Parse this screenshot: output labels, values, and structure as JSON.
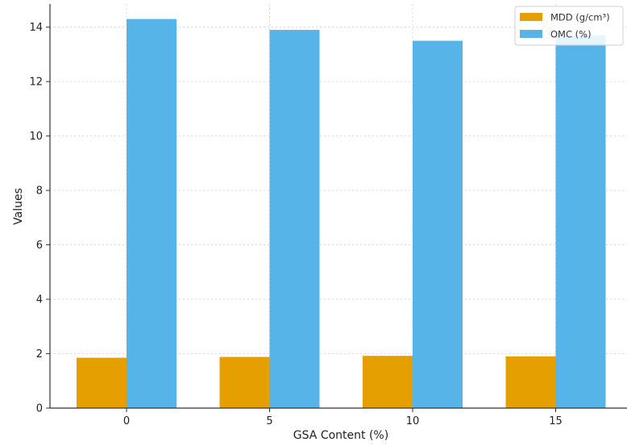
{
  "chart_data": {
    "type": "bar",
    "title": "",
    "xlabel": "GSA Content (%)",
    "ylabel": "Values",
    "categories": [
      "0",
      "5",
      "10",
      "15"
    ],
    "series": [
      {
        "name": "MDD (g/cm³)",
        "values": [
          1.85,
          1.88,
          1.92,
          1.9
        ],
        "color": "#E59F00"
      },
      {
        "name": "OMC (%)",
        "values": [
          14.3,
          13.9,
          13.5,
          13.7
        ],
        "color": "#56B4E9"
      }
    ],
    "ylim": [
      0,
      14.85
    ],
    "yticks": [
      "0",
      "2",
      "4",
      "6",
      "8",
      "10",
      "12",
      "14"
    ],
    "grid": true,
    "legend_position": "top-right"
  }
}
